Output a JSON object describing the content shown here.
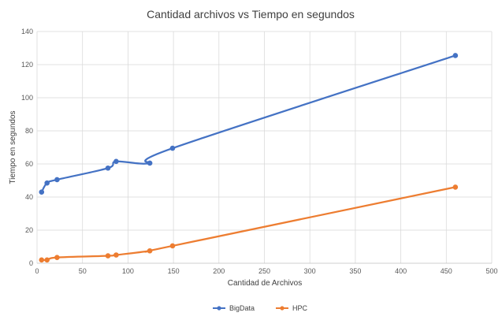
{
  "chart_data": {
    "type": "line",
    "title": "Cantidad archivos vs Tiempo en segundos",
    "xlabel": "Cantidad de Archivos",
    "ylabel": "Tiempo en segundos",
    "xlim": [
      0,
      500
    ],
    "ylim": [
      0,
      140
    ],
    "xticks": [
      0,
      50,
      100,
      150,
      200,
      250,
      300,
      350,
      400,
      450,
      500
    ],
    "yticks": [
      0,
      20,
      40,
      60,
      80,
      100,
      120,
      140
    ],
    "grid": true,
    "smooth": true,
    "legend_position": "bottom",
    "series": [
      {
        "name": "BigData",
        "color": "#4472C4",
        "points": [
          {
            "x": 5,
            "y": 43
          },
          {
            "x": 11,
            "y": 48.5
          },
          {
            "x": 22,
            "y": 50.5
          },
          {
            "x": 78,
            "y": 57.5
          },
          {
            "x": 87,
            "y": 61.5
          },
          {
            "x": 124,
            "y": 60.5
          },
          {
            "x": 149,
            "y": 69.5
          },
          {
            "x": 460,
            "y": 125.5
          }
        ]
      },
      {
        "name": "HPC",
        "color": "#ED7D31",
        "points": [
          {
            "x": 5,
            "y": 2
          },
          {
            "x": 11,
            "y": 2
          },
          {
            "x": 22,
            "y": 3.5
          },
          {
            "x": 78,
            "y": 4.5
          },
          {
            "x": 87,
            "y": 5
          },
          {
            "x": 124,
            "y": 7.5
          },
          {
            "x": 149,
            "y": 10.5
          },
          {
            "x": 460,
            "y": 46
          }
        ]
      }
    ]
  }
}
